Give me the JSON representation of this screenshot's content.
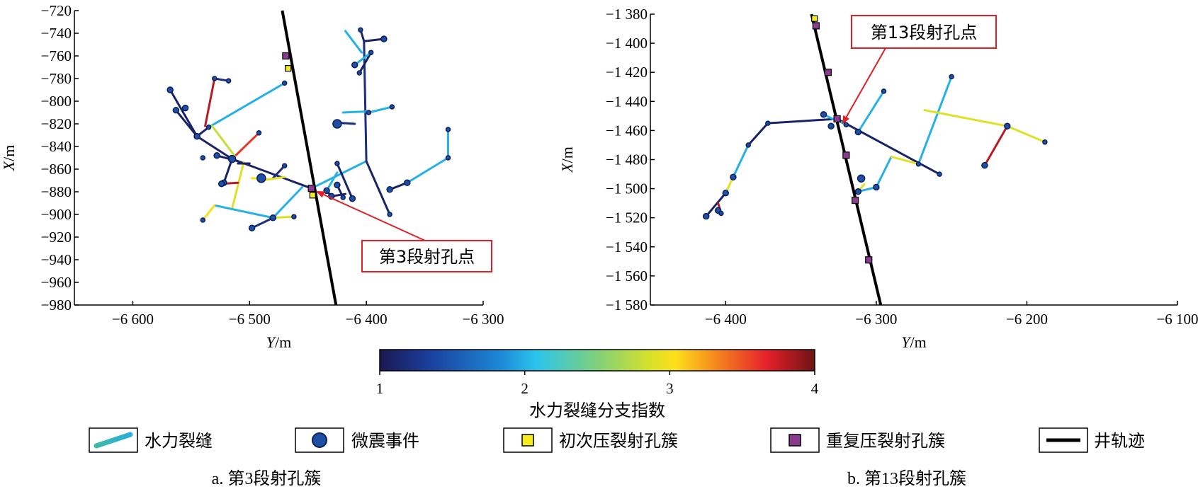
{
  "chart_data": [
    {
      "type": "scatter",
      "panel": "a",
      "xlabel": "Y/m",
      "ylabel": "X/m",
      "xlim": [
        -6650,
        -6300
      ],
      "ylim": [
        -980,
        -720
      ],
      "xticks": [
        -6600,
        -6500,
        -6400,
        -6300
      ],
      "xtick_labels": [
        "−6 600",
        "−6 500",
        "−6 400",
        "−6 300"
      ],
      "yticks": [
        -720,
        -740,
        -760,
        -780,
        -800,
        -820,
        -840,
        -860,
        -880,
        -900,
        -920,
        -940,
        -960,
        -980
      ],
      "ytick_labels": [
        "−720",
        "−740",
        "−760",
        "−780",
        "−800",
        "−820",
        "−840",
        "−860",
        "−880",
        "−900",
        "−920",
        "−940",
        "−960",
        "−980"
      ],
      "caption": "a. 第3段射孔簇",
      "annotation": {
        "text": "第3段射孔点",
        "target": [
          -6447,
          -878
        ]
      },
      "well": [
        [
          -6472,
          -720
        ],
        [
          -6426,
          -980
        ]
      ],
      "initial_clusters": [
        [
          -6467,
          -771
        ],
        [
          -6446,
          -883
        ]
      ],
      "repeat_clusters": [
        [
          -6469,
          -760
        ],
        [
          -6447,
          -877
        ]
      ],
      "fractures": [
        {
          "pts": [
            [
              -6447,
              -877
            ],
            [
              -6515,
              -851
            ],
            [
              -6545,
              -831
            ],
            [
              -6563,
              -808
            ]
          ],
          "idx": 1.1
        },
        {
          "pts": [
            [
              -6545,
              -831
            ],
            [
              -6568,
              -790
            ]
          ],
          "idx": 1.1
        },
        {
          "pts": [
            [
              -6515,
              -851
            ],
            [
              -6522,
              -872
            ]
          ],
          "idx": 1.1
        },
        {
          "pts": [
            [
              -6480,
              -868
            ],
            [
              -6470,
              -857
            ]
          ],
          "idx": 1.2
        },
        {
          "pts": [
            [
              -6510,
              -853
            ],
            [
              -6528,
              -848
            ]
          ],
          "idx": 1.1
        },
        {
          "pts": [
            [
              -6545,
              -831
            ],
            [
              -6535,
              -823
            ]
          ],
          "idx": 1.1
        },
        {
          "pts": [
            [
              -6535,
              -823
            ],
            [
              -6470,
              -784
            ]
          ],
          "idx": 2.0
        },
        {
          "pts": [
            [
              -6512,
              -848
            ],
            [
              -6492,
              -828
            ]
          ],
          "idx": 3.6
        },
        {
          "pts": [
            [
              -6532,
              -822
            ],
            [
              -6513,
              -848
            ]
          ],
          "idx": 2.8
        },
        {
          "pts": [
            [
              -6505,
              -854
            ],
            [
              -6515,
              -895
            ]
          ],
          "idx": 2.9
        },
        {
          "pts": [
            [
              -6455,
              -876
            ],
            [
              -6480,
              -903
            ]
          ],
          "idx": 2.0
        },
        {
          "pts": [
            [
              -6480,
              -903
            ],
            [
              -6530,
              -892
            ]
          ],
          "idx": 2.0
        },
        {
          "pts": [
            [
              -6480,
              -903
            ],
            [
              -6498,
              -912
            ]
          ],
          "idx": 1.2
        },
        {
          "pts": [
            [
              -6530,
              -892
            ],
            [
              -6540,
              -905
            ]
          ],
          "idx": 3.0
        },
        {
          "pts": [
            [
              -6480,
              -903
            ],
            [
              -6462,
              -902
            ]
          ],
          "idx": 2.9
        },
        {
          "pts": [
            [
              -6510,
              -872
            ],
            [
              -6524,
              -873
            ]
          ],
          "idx": 3.8
        },
        {
          "pts": [
            [
              -6498,
              -868
            ],
            [
              -6482,
              -869
            ]
          ],
          "idx": 3.0
        },
        {
          "pts": [
            [
              -6500,
              -855
            ],
            [
              -6510,
              -855
            ]
          ],
          "idx": 1.1
        },
        {
          "pts": [
            [
              -6530,
              -780
            ],
            [
              -6538,
              -822
            ]
          ],
          "idx": 3.8
        },
        {
          "pts": [
            [
              -6530,
              -780
            ],
            [
              -6518,
              -782
            ]
          ],
          "idx": 1.2
        },
        {
          "pts": [
            [
              -6447,
              -877
            ],
            [
              -6400,
              -853
            ]
          ],
          "idx": 2.0
        },
        {
          "pts": [
            [
              -6400,
              -853
            ],
            [
              -6380,
              -900
            ]
          ],
          "idx": 1.1
        },
        {
          "pts": [
            [
              -6400,
              -853
            ],
            [
              -6402,
              -747
            ]
          ],
          "idx": 1.2
        },
        {
          "pts": [
            [
              -6402,
              -747
            ],
            [
              -6385,
              -745
            ]
          ],
          "idx": 1.1
        },
        {
          "pts": [
            [
              -6402,
              -747
            ],
            [
              -6405,
              -737
            ]
          ],
          "idx": 1.1
        },
        {
          "pts": [
            [
              -6396,
              -757
            ],
            [
              -6406,
              -775
            ]
          ],
          "idx": 1.1
        },
        {
          "pts": [
            [
              -6396,
              -757
            ],
            [
              -6410,
              -768
            ]
          ],
          "idx": 2.0
        },
        {
          "pts": [
            [
              -6404,
              -757
            ],
            [
              -6418,
              -738
            ]
          ],
          "idx": 2.0
        },
        {
          "pts": [
            [
              -6398,
              -809
            ],
            [
              -6420,
              -810
            ]
          ],
          "idx": 2.0
        },
        {
          "pts": [
            [
              -6398,
              -810
            ],
            [
              -6378,
              -805
            ]
          ],
          "idx": 2.0
        },
        {
          "pts": [
            [
              -6410,
              -820
            ],
            [
              -6425,
              -819
            ]
          ],
          "idx": 1.2
        },
        {
          "pts": [
            [
              -6425,
              -855
            ],
            [
              -6412,
              -886
            ]
          ],
          "idx": 1.1
        },
        {
          "pts": [
            [
              -6420,
              -885
            ],
            [
              -6425,
              -874
            ]
          ],
          "idx": 1.1
        },
        {
          "pts": [
            [
              -6418,
              -882
            ],
            [
              -6430,
              -884
            ]
          ],
          "idx": 1.1
        },
        {
          "pts": [
            [
              -6430,
              -884
            ],
            [
              -6434,
              -879
            ]
          ],
          "idx": 1.1
        },
        {
          "pts": [
            [
              -6434,
              -879
            ],
            [
              -6425,
              -863
            ]
          ],
          "idx": 2.0
        },
        {
          "pts": [
            [
              -6380,
              -878
            ],
            [
              -6365,
              -872
            ]
          ],
          "idx": 1.1
        },
        {
          "pts": [
            [
              -6365,
              -872
            ],
            [
              -6330,
              -850
            ]
          ],
          "idx": 2.0
        },
        {
          "pts": [
            [
              -6330,
              -850
            ],
            [
              -6330,
              -825
            ]
          ],
          "idx": 2.0
        },
        {
          "pts": [
            [
              -6490,
              -870
            ],
            [
              -6470,
              -867
            ]
          ],
          "idx": 2.9
        }
      ],
      "events": [
        [
          -6447,
          -877,
          4
        ],
        [
          -6515,
          -851,
          5
        ],
        [
          -6545,
          -831,
          4
        ],
        [
          -6563,
          -808,
          4
        ],
        [
          -6568,
          -790,
          4
        ],
        [
          -6522,
          -872,
          4
        ],
        [
          -6470,
          -857,
          3
        ],
        [
          -6528,
          -848,
          4
        ],
        [
          -6470,
          -784,
          3
        ],
        [
          -6492,
          -828,
          3
        ],
        [
          -6540,
          -905,
          3
        ],
        [
          -6480,
          -903,
          4
        ],
        [
          -6498,
          -912,
          4
        ],
        [
          -6462,
          -902,
          3
        ],
        [
          -6524,
          -873,
          4
        ],
        [
          -6490,
          -868,
          6
        ],
        [
          -6530,
          -780,
          3
        ],
        [
          -6518,
          -782,
          3
        ],
        [
          -6555,
          -806,
          4
        ],
        [
          -6535,
          -823,
          3
        ],
        [
          -6380,
          -900,
          3
        ],
        [
          -6385,
          -745,
          4
        ],
        [
          -6405,
          -737,
          3
        ],
        [
          -6406,
          -775,
          3
        ],
        [
          -6410,
          -768,
          4
        ],
        [
          -6378,
          -805,
          3
        ],
        [
          -6425,
          -820,
          6
        ],
        [
          -6412,
          -886,
          4
        ],
        [
          -6425,
          -874,
          4
        ],
        [
          -6430,
          -884,
          4
        ],
        [
          -6434,
          -879,
          4
        ],
        [
          -6380,
          -878,
          4
        ],
        [
          -6365,
          -872,
          4
        ],
        [
          -6330,
          -850,
          3
        ],
        [
          -6330,
          -825,
          3
        ],
        [
          -6425,
          -855,
          3
        ],
        [
          -6420,
          -885,
          3
        ],
        [
          -6398,
          -810,
          3
        ],
        [
          -6396,
          -757,
          3
        ],
        [
          -6540,
          -850,
          3
        ]
      ]
    },
    {
      "type": "scatter",
      "panel": "b",
      "xlabel": "Y/m",
      "ylabel": "X/m",
      "xlim": [
        -6450,
        -6100
      ],
      "ylim": [
        -1580,
        -1380
      ],
      "xticks": [
        -6400,
        -6300,
        -6200,
        -6100
      ],
      "xtick_labels": [
        "−6 400",
        "−6 300",
        "−6 200",
        "−6 100"
      ],
      "yticks": [
        -1380,
        -1400,
        -1420,
        -1440,
        -1460,
        -1480,
        -1500,
        -1520,
        -1540,
        -1560,
        -1580
      ],
      "ytick_labels": [
        "−1 380",
        "−1 400",
        "−1 420",
        "−1 440",
        "−1 460",
        "−1 480",
        "−1 500",
        "−1 520",
        "−1 540",
        "−1 560",
        "−1 580"
      ],
      "caption": "b. 第13段射孔簇",
      "annotation": {
        "text": "第13段射孔点",
        "target": [
          -6325,
          -1453
        ]
      },
      "well": [
        [
          -6343,
          -1380
        ],
        [
          -6297,
          -1580
        ]
      ],
      "initial_clusters": [
        [
          -6341,
          -1383
        ]
      ],
      "repeat_clusters": [
        [
          -6340,
          -1388
        ],
        [
          -6332,
          -1420
        ],
        [
          -6326,
          -1452
        ],
        [
          -6320,
          -1477
        ],
        [
          -6314,
          -1508
        ],
        [
          -6305,
          -1549
        ]
      ],
      "fractures": [
        {
          "pts": [
            [
              -6326,
              -1452
            ],
            [
              -6372,
              -1455
            ],
            [
              -6385,
              -1470
            ]
          ],
          "idx": 1.1
        },
        {
          "pts": [
            [
              -6385,
              -1470
            ],
            [
              -6395,
              -1492
            ]
          ],
          "idx": 2.0
        },
        {
          "pts": [
            [
              -6395,
              -1492
            ],
            [
              -6400,
              -1503
            ]
          ],
          "idx": 2.9
        },
        {
          "pts": [
            [
              -6400,
              -1503
            ],
            [
              -6413,
              -1519
            ]
          ],
          "idx": 1.1
        },
        {
          "pts": [
            [
              -6405,
              -1510
            ],
            [
              -6403,
              -1517
            ]
          ],
          "idx": 3.8
        },
        {
          "pts": [
            [
              -6326,
              -1452
            ],
            [
              -6258,
              -1490
            ]
          ],
          "idx": 1.1
        },
        {
          "pts": [
            [
              -6327,
              -1453
            ],
            [
              -6335,
              -1449
            ]
          ],
          "idx": 2.0
        },
        {
          "pts": [
            [
              -6326,
              -1453
            ],
            [
              -6320,
              -1456
            ]
          ],
          "idx": 2.0
        },
        {
          "pts": [
            [
              -6312,
              -1461
            ],
            [
              -6295,
              -1433
            ]
          ],
          "idx": 2.0
        },
        {
          "pts": [
            [
              -6300,
              -1499
            ],
            [
              -6290,
              -1478
            ]
          ],
          "idx": 2.0
        },
        {
          "pts": [
            [
              -6290,
              -1478
            ],
            [
              -6272,
              -1483
            ]
          ],
          "idx": 2.9
        },
        {
          "pts": [
            [
              -6272,
              -1483
            ],
            [
              -6250,
              -1423
            ]
          ],
          "idx": 2.0
        },
        {
          "pts": [
            [
              -6268,
              -1446
            ],
            [
              -6213,
              -1457
            ]
          ],
          "idx": 2.9
        },
        {
          "pts": [
            [
              -6213,
              -1457
            ],
            [
              -6188,
              -1468
            ]
          ],
          "idx": 2.9
        },
        {
          "pts": [
            [
              -6213,
              -1457
            ],
            [
              -6228,
              -1484
            ]
          ],
          "idx": 3.8
        },
        {
          "pts": [
            [
              -6300,
              -1499
            ],
            [
              -6312,
              -1502
            ]
          ],
          "idx": 2.0
        },
        {
          "pts": [
            [
              -6312,
              -1502
            ],
            [
              -6308,
              -1497
            ]
          ],
          "idx": 2.9
        }
      ],
      "events": [
        [
          -6326,
          -1452,
          4
        ],
        [
          -6372,
          -1455,
          3
        ],
        [
          -6385,
          -1470,
          3
        ],
        [
          -6395,
          -1492,
          4
        ],
        [
          -6400,
          -1503,
          4
        ],
        [
          -6413,
          -1519,
          4
        ],
        [
          -6405,
          -1515,
          4
        ],
        [
          -6403,
          -1517,
          3
        ],
        [
          -6258,
          -1490,
          3
        ],
        [
          -6335,
          -1449,
          4
        ],
        [
          -6330,
          -1457,
          4
        ],
        [
          -6320,
          -1456,
          3
        ],
        [
          -6312,
          -1461,
          4
        ],
        [
          -6295,
          -1433,
          3
        ],
        [
          -6300,
          -1499,
          4
        ],
        [
          -6272,
          -1483,
          3
        ],
        [
          -6250,
          -1423,
          3
        ],
        [
          -6213,
          -1457,
          4
        ],
        [
          -6188,
          -1468,
          3
        ],
        [
          -6228,
          -1484,
          4
        ],
        [
          -6312,
          -1502,
          4
        ],
        [
          -6310,
          -1493,
          5
        ]
      ]
    }
  ],
  "colorbar": {
    "label": "水力裂缝分支指数",
    "min": 1,
    "max": 4,
    "tick_labels": [
      "1",
      "2",
      "3",
      "4"
    ]
  },
  "legend": {
    "fracture": "水力裂缝",
    "event": "微震事件",
    "initial": "初次压裂射孔簇",
    "repeat": "重复压裂射孔簇",
    "well": "井轨迹"
  },
  "colors": {
    "well": "#000000",
    "event_fill": "#1f4fa3",
    "event_edge": "#0a1f5c",
    "initial": "#f5ec1f",
    "repeat": "#8a3a8f",
    "annotation": "#e01f26"
  }
}
